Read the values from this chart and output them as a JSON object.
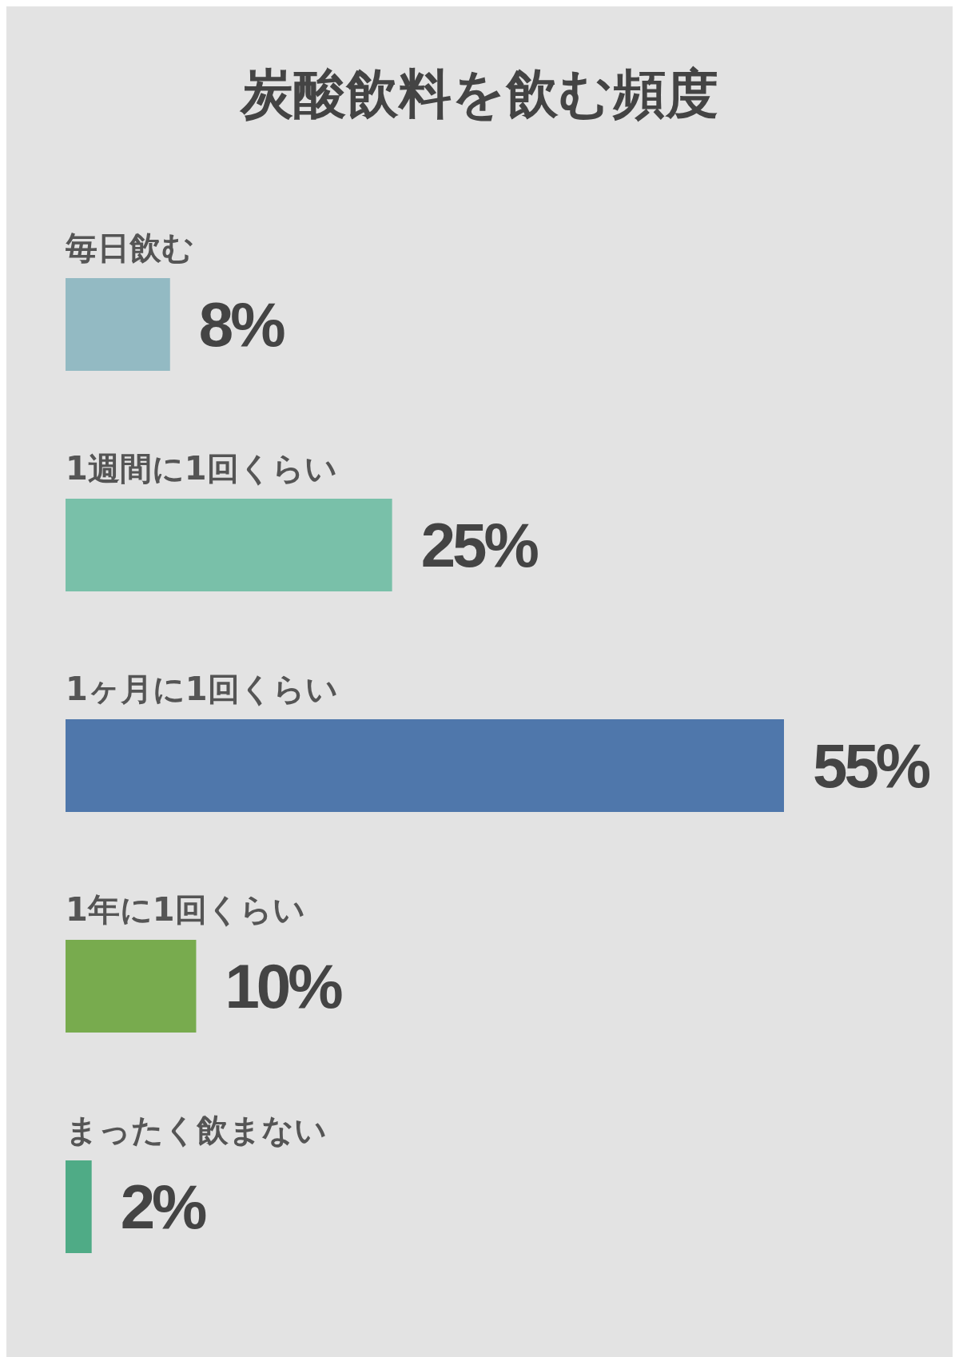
{
  "chart_data": {
    "type": "bar",
    "orientation": "horizontal",
    "title": "炭酸飲料を飲む頻度",
    "categories": [
      "毎日飲む",
      "1週間に1回くらい",
      "1ヶ月に1回くらい",
      "1年に1回くらい",
      "まったく飲まない"
    ],
    "values": [
      8,
      25,
      55,
      10,
      2
    ],
    "colors": [
      "#93bac3",
      "#79c0a9",
      "#4f77ab",
      "#78ab4e",
      "#4fab86"
    ],
    "value_labels": [
      "8%",
      "25%",
      "55%",
      "10%",
      "2%"
    ]
  }
}
